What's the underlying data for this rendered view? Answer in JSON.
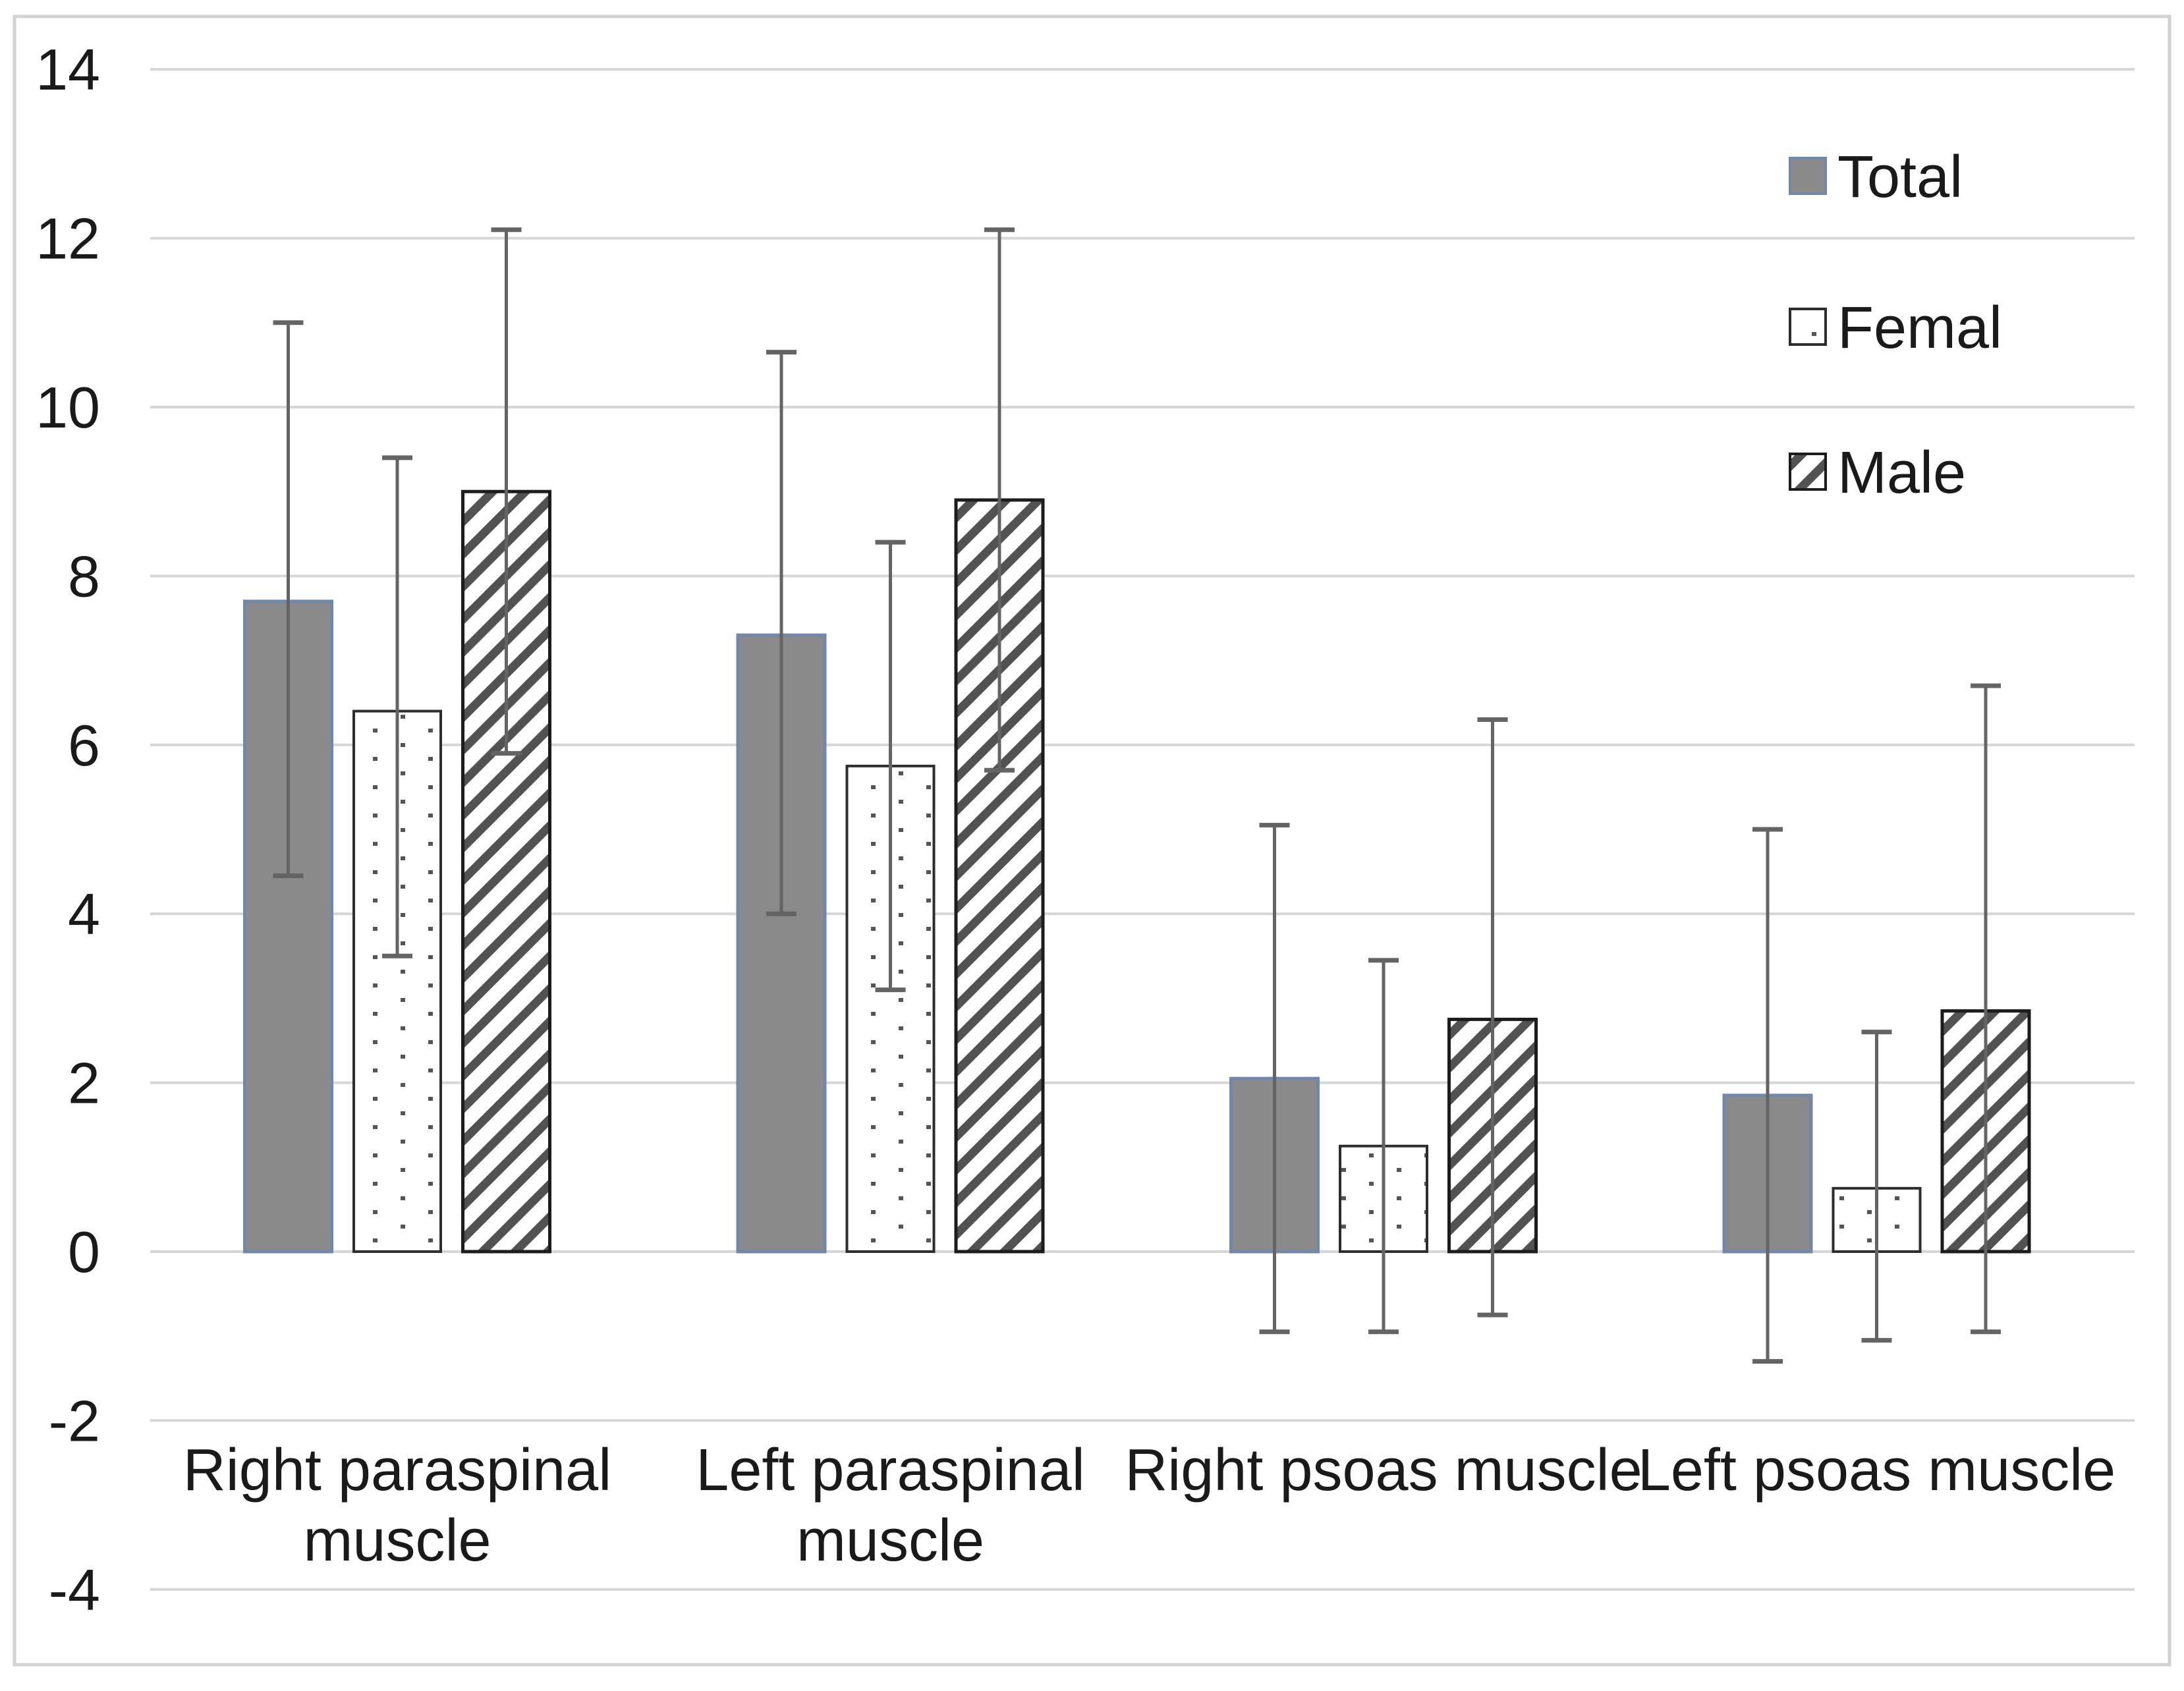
{
  "chart_data": {
    "type": "bar",
    "title": "",
    "xlabel": "",
    "ylabel": "",
    "categories": [
      "Right paraspinal muscle",
      "Left paraspinal muscle",
      "Right psoas muscle",
      "Left psoas muscle"
    ],
    "category_lines": [
      [
        "Right paraspinal",
        "muscle"
      ],
      [
        "Left paraspinal",
        "muscle"
      ],
      [
        "Right psoas muscle"
      ],
      [
        "Left psoas muscle"
      ]
    ],
    "series": [
      {
        "name": "Total",
        "style": "solid-gray",
        "values": [
          7.7,
          7.3,
          2.05,
          1.85
        ],
        "error_low": [
          4.45,
          4.0,
          -0.95,
          -1.3
        ],
        "error_high": [
          11.0,
          10.65,
          5.05,
          5.0
        ]
      },
      {
        "name": "Femal",
        "style": "dotted",
        "values": [
          6.4,
          5.75,
          1.25,
          0.75
        ],
        "error_low": [
          3.5,
          3.1,
          -0.95,
          -1.05
        ],
        "error_high": [
          9.4,
          8.4,
          3.45,
          2.6
        ]
      },
      {
        "name": "Male",
        "style": "hatched",
        "values": [
          9.0,
          8.9,
          2.75,
          2.85
        ],
        "error_low": [
          5.9,
          5.7,
          -0.75,
          -0.95
        ],
        "error_high": [
          12.1,
          12.1,
          6.3,
          6.7
        ]
      }
    ],
    "y_axis": {
      "min": -4,
      "max": 14,
      "step": 2,
      "ticks": [
        14,
        12,
        10,
        8,
        6,
        4,
        2,
        0,
        -2,
        -4
      ]
    },
    "legend": {
      "position": "top-right",
      "labels": [
        "Total",
        "Femal",
        "Male"
      ]
    },
    "grid": true,
    "error_bars": true,
    "colors": {
      "background": "#ffffff",
      "chart_border": "#d2d2d2",
      "gridline": "#d6d6d6",
      "text": "#1a1a1a",
      "bar_gray_fill": "#8a8a8a",
      "bar_gray_border": "#7089aa",
      "dotted_fill_bg": "#ffffff",
      "dot_color": "#555555",
      "dotted_border": "#2d2d2d",
      "hatch_bg": "#ffffff",
      "hatch_stroke": "#525252",
      "hatched_border": "#1c1c1c",
      "error_bar": "#646464"
    }
  }
}
